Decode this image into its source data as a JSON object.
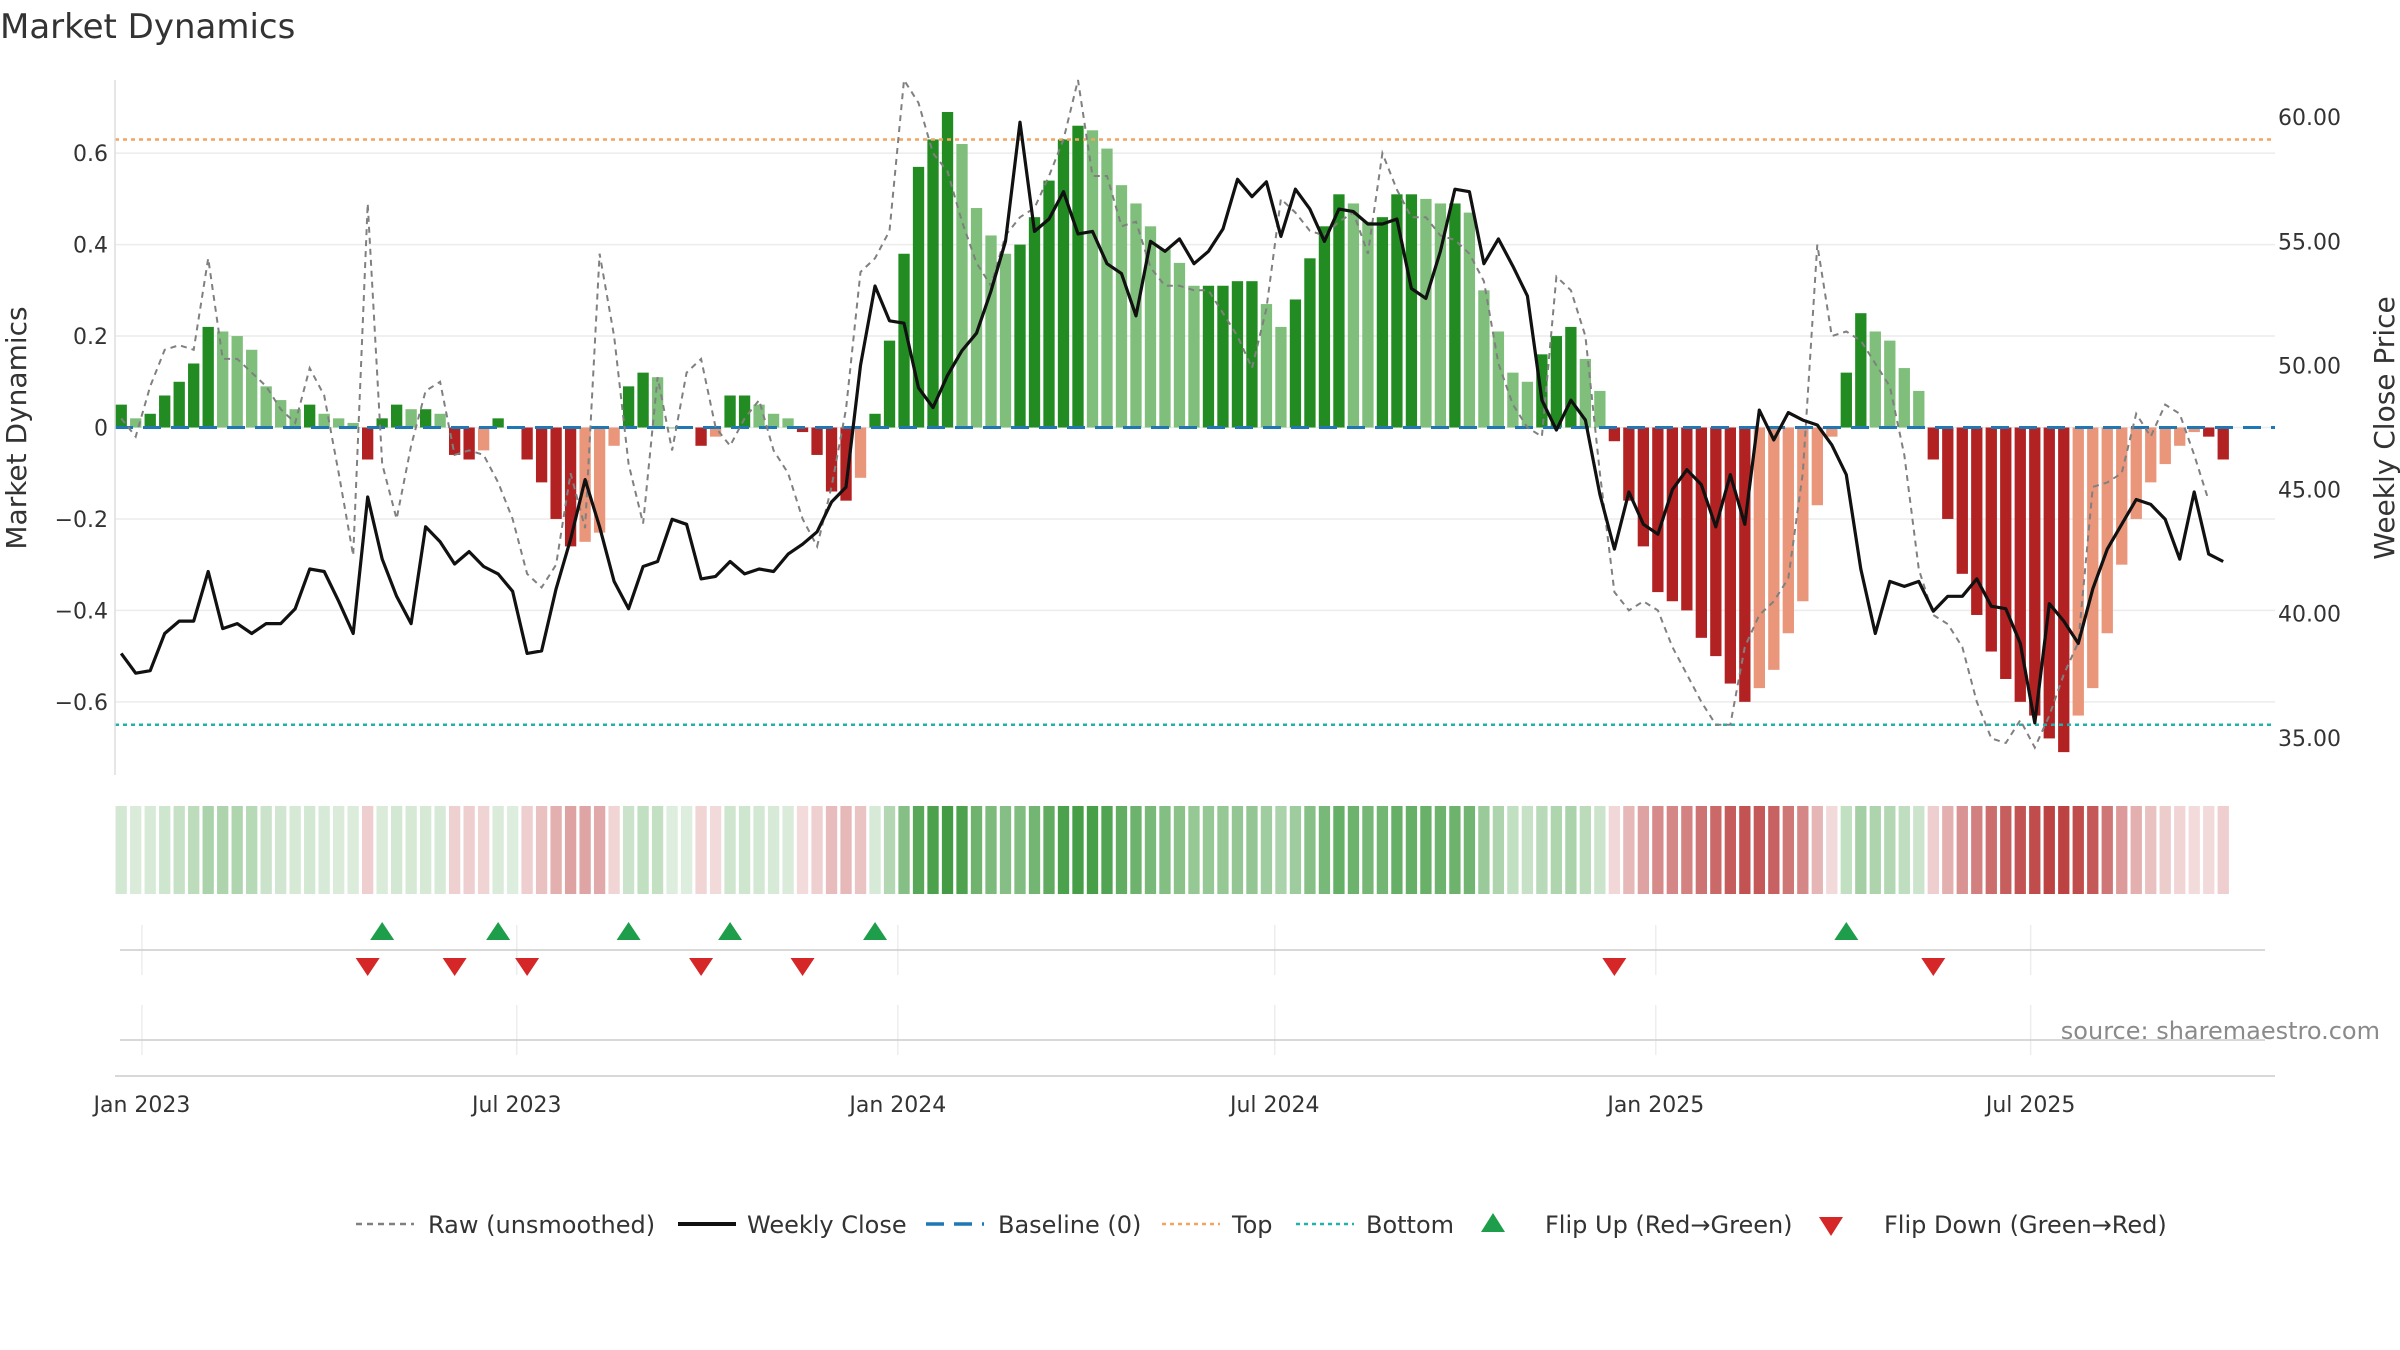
{
  "chart_data": {
    "type": "bar",
    "title": "Market Dynamics",
    "ylabel_left": "Market Dynamics",
    "ylabel_right": "Weekly Close Price",
    "ylim_left": [
      -0.76,
      0.76
    ],
    "ylim_right": [
      33.5,
      61.5
    ],
    "left_ticks": [
      "−0.6",
      "−0.4",
      "−0.2",
      "0",
      "0.2",
      "0.4",
      "0.6"
    ],
    "left_tick_values": [
      -0.6,
      -0.4,
      -0.2,
      0,
      0.2,
      0.4,
      0.6
    ],
    "right_ticks": [
      "35.00",
      "40.00",
      "45.00",
      "50.00",
      "55.00",
      "60.00"
    ],
    "right_tick_values": [
      35,
      40,
      45,
      50,
      55,
      60
    ],
    "top_level": 0.63,
    "bottom_level": -0.65,
    "baseline": 0,
    "x_start": "2022-12-19",
    "x_end": "2025-10-27",
    "x_ticks": [
      {
        "date": "2023-01-01",
        "label": "Jan 2023"
      },
      {
        "date": "2023-07-01",
        "label": "Jul 2023"
      },
      {
        "date": "2024-01-01",
        "label": "Jan 2024"
      },
      {
        "date": "2024-07-01",
        "label": "Jul 2024"
      },
      {
        "date": "2025-01-01",
        "label": "Jan 2025"
      },
      {
        "date": "2025-07-01",
        "label": "Jul 2025"
      }
    ],
    "weekly_dynamics_dates": [
      "2022-12-19 weekly, 146 values"
    ],
    "dynamics": [
      0.05,
      0.02,
      0.03,
      0.07,
      0.1,
      0.14,
      0.22,
      0.21,
      0.2,
      0.17,
      0.09,
      0.06,
      0.04,
      0.05,
      0.03,
      0.02,
      0.01,
      -0.07,
      0.02,
      0.05,
      0.04,
      0.04,
      0.03,
      -0.06,
      -0.07,
      -0.05,
      0.02,
      0.0,
      -0.07,
      -0.12,
      -0.2,
      -0.26,
      -0.25,
      -0.23,
      -0.04,
      0.09,
      0.12,
      0.11,
      0.0,
      0.0,
      -0.04,
      -0.02,
      0.07,
      0.07,
      0.05,
      0.03,
      0.02,
      -0.01,
      -0.06,
      -0.14,
      -0.16,
      -0.11,
      0.03,
      0.19,
      0.38,
      0.57,
      0.63,
      0.69,
      0.62,
      0.48,
      0.42,
      0.38,
      0.4,
      0.46,
      0.54,
      0.63,
      0.66,
      0.65,
      0.61,
      0.53,
      0.49,
      0.44,
      0.39,
      0.36,
      0.31,
      0.31,
      0.31,
      0.32,
      0.32,
      0.27,
      0.22,
      0.28,
      0.37,
      0.44,
      0.51,
      0.49,
      0.45,
      0.46,
      0.51,
      0.51,
      0.5,
      0.49,
      0.49,
      0.47,
      0.3,
      0.21,
      0.12,
      0.1,
      0.16,
      0.2,
      0.22,
      0.15,
      0.08,
      -0.03,
      -0.16,
      -0.26,
      -0.36,
      -0.38,
      -0.4,
      -0.46,
      -0.5,
      -0.56,
      -0.6,
      -0.57,
      -0.53,
      -0.45,
      -0.38,
      -0.17,
      -0.02,
      0.12,
      0.25,
      0.21,
      0.19,
      0.13,
      0.08,
      -0.07,
      -0.2,
      -0.32,
      -0.41,
      -0.49,
      -0.55,
      -0.6,
      -0.63,
      -0.68,
      -0.71,
      -0.63,
      -0.57,
      -0.45,
      -0.3,
      -0.2,
      -0.12,
      -0.08,
      -0.04,
      -0.01,
      -0.02,
      -0.07
    ],
    "raw": [
      0.02,
      -0.02,
      0.09,
      0.17,
      0.18,
      0.17,
      0.37,
      0.15,
      0.15,
      0.12,
      0.09,
      0.04,
      0.01,
      0.13,
      0.07,
      -0.1,
      -0.28,
      0.49,
      -0.08,
      -0.2,
      -0.04,
      0.08,
      0.1,
      -0.06,
      -0.05,
      -0.06,
      -0.12,
      -0.2,
      -0.32,
      -0.35,
      -0.3,
      -0.1,
      -0.22,
      0.38,
      0.2,
      -0.08,
      -0.21,
      0.11,
      -0.05,
      0.12,
      0.15,
      0.0,
      -0.04,
      0.02,
      0.06,
      -0.05,
      -0.1,
      -0.2,
      -0.26,
      -0.13,
      0.04,
      0.34,
      0.37,
      0.43,
      0.76,
      0.71,
      0.6,
      0.56,
      0.45,
      0.36,
      0.31,
      0.42,
      0.46,
      0.48,
      0.55,
      0.63,
      0.76,
      0.55,
      0.55,
      0.44,
      0.45,
      0.35,
      0.31,
      0.31,
      0.3,
      0.3,
      0.25,
      0.2,
      0.13,
      0.26,
      0.5,
      0.47,
      0.43,
      0.42,
      0.45,
      0.47,
      0.38,
      0.6,
      0.52,
      0.46,
      0.46,
      0.42,
      0.41,
      0.38,
      0.32,
      0.14,
      0.05,
      0.0,
      -0.02,
      0.33,
      0.3,
      0.2,
      -0.1,
      -0.36,
      -0.4,
      -0.38,
      -0.4,
      -0.48,
      -0.54,
      -0.6,
      -0.65,
      -0.65,
      -0.48,
      -0.41,
      -0.38,
      -0.33,
      -0.1,
      0.4,
      0.2,
      0.21,
      0.19,
      0.14,
      0.09,
      -0.06,
      -0.31,
      -0.41,
      -0.43,
      -0.48,
      -0.6,
      -0.68,
      -0.69,
      -0.64,
      -0.7,
      -0.63,
      -0.54,
      -0.47,
      -0.13,
      -0.12,
      -0.1,
      0.03,
      -0.02,
      0.05,
      0.03,
      -0.06,
      -0.16
    ],
    "close": [
      38.4,
      37.6,
      37.7,
      39.2,
      39.7,
      39.7,
      41.7,
      39.4,
      39.6,
      39.2,
      39.6,
      39.6,
      40.2,
      41.8,
      41.7,
      40.5,
      39.2,
      44.7,
      42.2,
      40.7,
      39.6,
      43.5,
      42.9,
      42,
      42.5,
      41.9,
      41.6,
      40.9,
      38.4,
      38.5,
      41,
      43,
      45.4,
      43.5,
      41.3,
      40.2,
      41.9,
      42.1,
      43.8,
      43.6,
      41.4,
      41.5,
      42.1,
      41.6,
      41.8,
      41.7,
      42.4,
      42.8,
      43.3,
      44.5,
      45.1,
      50,
      53.2,
      51.8,
      51.7,
      49.1,
      48.3,
      49.6,
      50.6,
      51.3,
      53,
      55,
      59.8,
      55.4,
      55.9,
      57,
      55.3,
      55.4,
      54.1,
      53.7,
      52,
      55,
      54.6,
      55.1,
      54.1,
      54.6,
      55.5,
      57.5,
      56.8,
      57.4,
      55.2,
      57.1,
      56.3,
      55,
      56.3,
      56.2,
      55.7,
      55.7,
      55.9,
      53.1,
      52.7,
      54.6,
      57.1,
      57,
      54.1,
      55.1,
      54,
      52.8,
      48.6,
      47.4,
      48.6,
      47.8,
      44.8,
      42.6,
      44.9,
      43.6,
      43.2,
      45,
      45.8,
      45.2,
      43.5,
      45.6,
      43.6,
      48.2,
      47,
      48.1,
      47.8,
      47.6,
      46.8,
      45.6,
      41.8,
      39.2,
      41.3,
      41.1,
      41.3,
      40.1,
      40.7,
      40.7,
      41.4,
      40.3,
      40.2,
      38.8,
      35.6,
      40.4,
      39.7,
      38.8,
      41,
      42.6,
      43.6,
      44.6,
      44.4,
      43.8,
      42.2,
      44.9,
      42.4,
      42.1
    ]
  },
  "legend": {
    "raw": "Raw (unsmoothed)",
    "close": "Weekly Close",
    "baseline": "Baseline (0)",
    "top": "Top",
    "bottom": "Bottom",
    "flip_up": "Flip Up (Red→Green)",
    "flip_down": "Flip Down (Green→Red)"
  },
  "source": "source: sharemaestro.com",
  "colors": {
    "strong_green": "#228b22",
    "light_green": "#7fbf7b",
    "strong_red": "#b22222",
    "light_red": "#e9967a",
    "raw_line": "#808080",
    "close_line": "#111111",
    "baseline": "#1f77b4",
    "top": "#f4a460",
    "bottom": "#20b2aa",
    "flip_up": "#1e9e4a",
    "flip_down": "#d62728"
  }
}
